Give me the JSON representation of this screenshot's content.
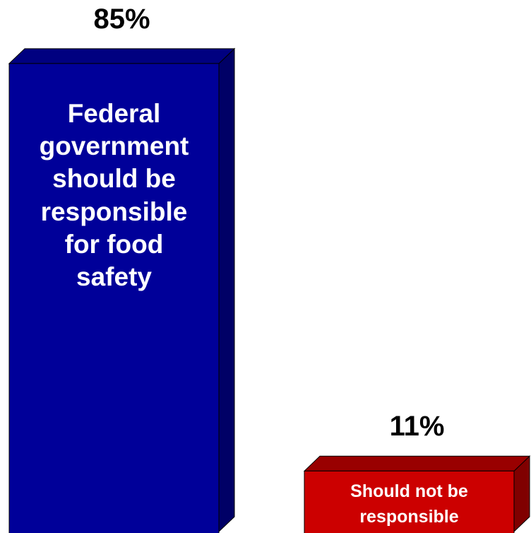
{
  "chart_data": {
    "type": "bar",
    "categories": [
      "Federal government should be responsible for food safety",
      "Should not be responsible"
    ],
    "values": [
      85,
      11
    ],
    "value_labels": [
      "85%",
      "11%"
    ],
    "bar_labels": [
      "Federal\ngovernment\nshould be\nresponsible\nfor food\nsafety",
      "Should not be\nresponsible"
    ],
    "colors": {
      "bar_0_front": "#000099",
      "bar_0_side": "#000066",
      "bar_0_top": "#000080",
      "bar_1_front": "#CC0000",
      "bar_1_side": "#800000",
      "bar_1_top": "#990000"
    },
    "title": "",
    "xlabel": "",
    "ylabel": "",
    "ylim": [
      0,
      100
    ],
    "grid": false,
    "legend": "none"
  }
}
